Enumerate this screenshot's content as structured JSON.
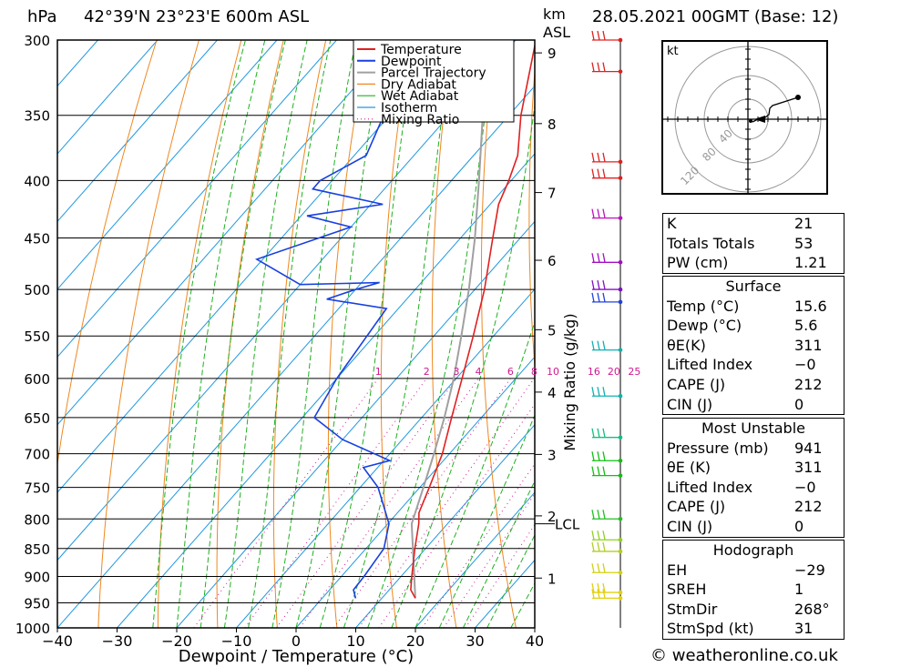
{
  "header": {
    "unit_hpa": "hPa",
    "location": "42°39'N  23°23'E  600m  ASL",
    "km_label": "km",
    "asl_label": "ASL",
    "datetime": "28.05.2021  00GMT  (Base: 12)"
  },
  "chart_data": {
    "type": "skewt",
    "xlabel": "Dewpoint / Temperature (°C)",
    "ylabel": "Mixing Ratio (g/kg)",
    "xlim": [
      -40,
      40
    ],
    "pressure_range": [
      300,
      1000
    ],
    "pressure_levels": [
      300,
      350,
      400,
      450,
      500,
      550,
      600,
      650,
      700,
      750,
      800,
      850,
      900,
      950,
      1000
    ],
    "temp_ticks": [
      -40,
      -30,
      -20,
      -10,
      0,
      10,
      20,
      30,
      40
    ],
    "temp_tick_labels": [
      "−40",
      "−30",
      "−20",
      "−10",
      "0",
      "10",
      "20",
      "30",
      "40"
    ],
    "km_ticks": [
      {
        "label": "1",
        "p": 903
      },
      {
        "label": "2",
        "p": 795
      },
      {
        "label": "3",
        "p": 701
      },
      {
        "label": "4",
        "p": 617
      },
      {
        "label": "5",
        "p": 543
      },
      {
        "label": "6",
        "p": 471
      },
      {
        "label": "7",
        "p": 410
      },
      {
        "label": "8",
        "p": 356
      },
      {
        "label": "9",
        "p": 308
      }
    ],
    "lcl": {
      "label": "LCL",
      "p": 808
    },
    "mixing_ratio_labels": [
      "1",
      "2",
      "3",
      "4",
      "6",
      "8",
      "10",
      "16",
      "20",
      "25"
    ],
    "mixing_ratio_values": [
      1,
      2,
      3,
      4,
      6,
      8,
      10,
      16,
      20,
      25
    ],
    "legend": [
      "Temperature",
      "Dewpoint",
      "Parcel Trajectory",
      "Dry Adiabat",
      "Wet Adiabat",
      "Isotherm",
      "Mixing Ratio"
    ],
    "colors": {
      "temperature": "#e02020",
      "dewpoint": "#1840e0",
      "parcel": "#a0a0a0",
      "dry_adiabat": "#ee8820",
      "wet_adiabat": "#20b020",
      "isotherm": "#2098e0",
      "mixing_ratio": "#d01890"
    },
    "temperature_profile": [
      {
        "p": 941,
        "t": 15.6
      },
      {
        "p": 925,
        "t": 13.6
      },
      {
        "p": 900,
        "t": 11.8
      },
      {
        "p": 850,
        "t": 8.2
      },
      {
        "p": 808,
        "t": 5.2
      },
      {
        "p": 790,
        "t": 3.6
      },
      {
        "p": 750,
        "t": 1.6
      },
      {
        "p": 700,
        "t": -1.2
      },
      {
        "p": 650,
        "t": -5.0
      },
      {
        "p": 600,
        "t": -9.0
      },
      {
        "p": 550,
        "t": -13.4
      },
      {
        "p": 500,
        "t": -18.4
      },
      {
        "p": 450,
        "t": -24.6
      },
      {
        "p": 420,
        "t": -28.6
      },
      {
        "p": 400,
        "t": -30.4
      },
      {
        "p": 380,
        "t": -32.6
      },
      {
        "p": 350,
        "t": -38.0
      },
      {
        "p": 300,
        "t": -46.6
      }
    ],
    "dewpoint_profile": [
      {
        "p": 941,
        "td": 5.6
      },
      {
        "p": 925,
        "td": 4.0
      },
      {
        "p": 900,
        "td": 3.8
      },
      {
        "p": 850,
        "td": 3.0
      },
      {
        "p": 808,
        "td": 0.2
      },
      {
        "p": 750,
        "td": -7.0
      },
      {
        "p": 720,
        "td": -12.4
      },
      {
        "p": 710,
        "td": -9.0
      },
      {
        "p": 680,
        "td": -20.0
      },
      {
        "p": 650,
        "td": -28.0
      },
      {
        "p": 600,
        "td": -30.0
      },
      {
        "p": 520,
        "td": -32.0
      },
      {
        "p": 510,
        "td": -43.4
      },
      {
        "p": 500,
        "td": -40.0
      },
      {
        "p": 493,
        "td": -37.0
      },
      {
        "p": 495,
        "td": -50.0
      },
      {
        "p": 470,
        "td": -61.0
      },
      {
        "p": 440,
        "td": -50.0
      },
      {
        "p": 430,
        "td": -59.0
      },
      {
        "p": 420,
        "td": -48.0
      },
      {
        "p": 407,
        "td": -62.0
      },
      {
        "p": 400,
        "td": -62.0
      },
      {
        "p": 380,
        "td": -58.0
      },
      {
        "p": 305,
        "td": -66.0
      }
    ],
    "parcel_profile": [
      {
        "p": 941,
        "t": 15.6
      },
      {
        "p": 808,
        "t": 4.0
      },
      {
        "p": 750,
        "t": 0.6
      },
      {
        "p": 700,
        "t": -2.6
      },
      {
        "p": 650,
        "t": -6.2
      },
      {
        "p": 600,
        "t": -10.4
      },
      {
        "p": 550,
        "t": -15.4
      },
      {
        "p": 500,
        "t": -21.0
      },
      {
        "p": 450,
        "t": -27.6
      },
      {
        "p": 400,
        "t": -35.4
      },
      {
        "p": 350,
        "t": -44.4
      },
      {
        "p": 300,
        "t": -55.0
      }
    ],
    "wind_barbs": [
      {
        "p": 300,
        "color": "#e02020"
      },
      {
        "p": 320,
        "color": "#e02020"
      },
      {
        "p": 385,
        "color": "#e02020"
      },
      {
        "p": 398,
        "color": "#e02020"
      },
      {
        "p": 432,
        "color": "#c010c0"
      },
      {
        "p": 473,
        "color": "#a010c0"
      },
      {
        "p": 500,
        "color": "#8010c0"
      },
      {
        "p": 513,
        "color": "#2040e0"
      },
      {
        "p": 566,
        "color": "#10b0b0"
      },
      {
        "p": 622,
        "color": "#10b0b0"
      },
      {
        "p": 677,
        "color": "#10c080"
      },
      {
        "p": 710,
        "color": "#10c010"
      },
      {
        "p": 732,
        "color": "#10c010"
      },
      {
        "p": 800,
        "color": "#20c020"
      },
      {
        "p": 835,
        "color": "#90d020"
      },
      {
        "p": 855,
        "color": "#b0d020"
      },
      {
        "p": 893,
        "color": "#d0d010"
      },
      {
        "p": 930,
        "color": "#e0d010"
      },
      {
        "p": 941,
        "color": "#e0d010"
      }
    ]
  },
  "hodograph": {
    "unit": "kt",
    "ring_labels": [
      "40",
      "80",
      "120"
    ]
  },
  "indices": {
    "rows": [
      {
        "k": "K",
        "v": "21"
      },
      {
        "k": "Totals Totals",
        "v": "53"
      },
      {
        "k": "PW (cm)",
        "v": "1.21"
      }
    ]
  },
  "surface": {
    "title": "Surface",
    "rows": [
      {
        "k": "Temp (°C)",
        "v": "15.6"
      },
      {
        "k": "Dewp (°C)",
        "v": "5.6"
      },
      {
        "k": "θE(K)",
        "v": "311"
      },
      {
        "k": "Lifted Index",
        "v": "−0"
      },
      {
        "k": "CAPE (J)",
        "v": "212"
      },
      {
        "k": "CIN (J)",
        "v": "0"
      }
    ]
  },
  "most_unstable": {
    "title": "Most Unstable",
    "rows": [
      {
        "k": "Pressure (mb)",
        "v": "941"
      },
      {
        "k": "θE (K)",
        "v": "311"
      },
      {
        "k": "Lifted Index",
        "v": "−0"
      },
      {
        "k": "CAPE (J)",
        "v": "212"
      },
      {
        "k": "CIN (J)",
        "v": "0"
      }
    ]
  },
  "hodograph_stats": {
    "title": "Hodograph",
    "rows": [
      {
        "k": "EH",
        "v": "−29"
      },
      {
        "k": "SREH",
        "v": "1"
      },
      {
        "k": "StmDir",
        "v": "268°"
      },
      {
        "k": "StmSpd (kt)",
        "v": "31"
      }
    ]
  },
  "footer": {
    "copyright": "© weatheronline.co.uk"
  }
}
